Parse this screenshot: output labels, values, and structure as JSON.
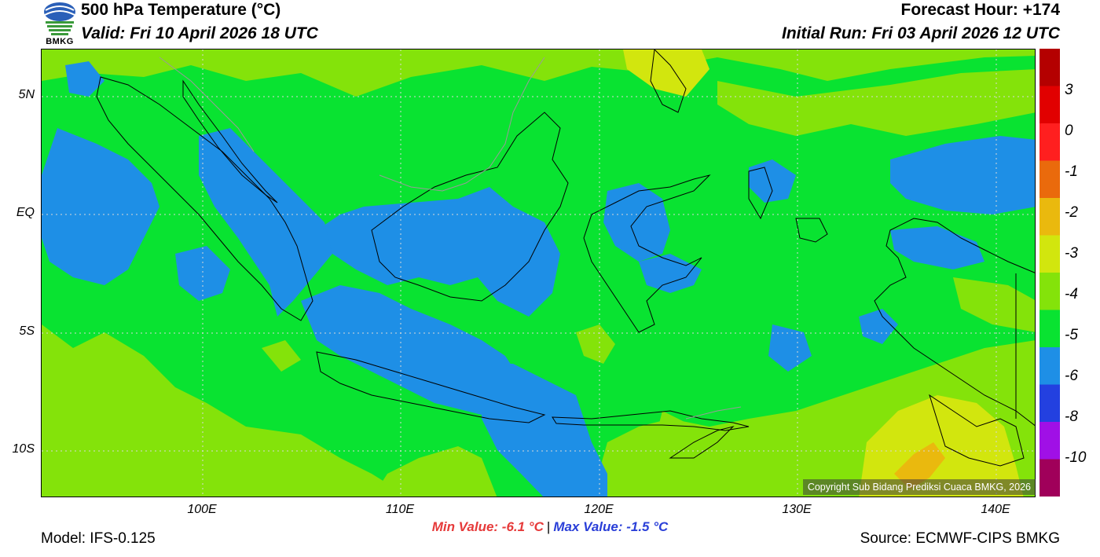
{
  "header": {
    "title": "500 hPa Temperature (°C)",
    "valid": "Valid: Fri 10 April 2026 18 UTC",
    "forecast_hour": "Forecast Hour: +174",
    "initial_run": "Initial Run: Fri 03 April 2026 12 UTC"
  },
  "logo": {
    "text": "BMKG",
    "icon": "bmkg-logo-icon"
  },
  "map": {
    "lat_labels": [
      "5N",
      "EQ",
      "5S",
      "10S"
    ],
    "lon_labels": [
      "100E",
      "110E",
      "120E",
      "130E",
      "140E"
    ],
    "copyright": "Copyright Sub Bidang Prediksi Cuaca BMKG, 2026",
    "colors": {
      "minus6_5": "#1e8fe6",
      "minus5_4": "#09e331",
      "minus4_3": "#84e30a",
      "minus3_2": "#d2e60e",
      "minus2_1": "#eab90e",
      "coastline": "#000000",
      "border": "#9a9a9a"
    }
  },
  "colorbar": {
    "labels": [
      "3",
      "0",
      "-1",
      "-2",
      "-3",
      "-4",
      "-5",
      "-6",
      "-8",
      "-10"
    ],
    "colors": [
      "#b40000",
      "#e10000",
      "#ff1f1f",
      "#ea6a0c",
      "#eab90e",
      "#d2e60e",
      "#84e30a",
      "#09e331",
      "#1e8fe6",
      "#2340e0",
      "#a010e6",
      "#a0005a"
    ]
  },
  "stats": {
    "min": "Min Value: -6.1 °C",
    "separator": "|",
    "max": "Max Value: -1.5 °C"
  },
  "footer": {
    "model": "Model: IFS-0.125",
    "source": "Source: ECMWF-CIPS BMKG"
  }
}
